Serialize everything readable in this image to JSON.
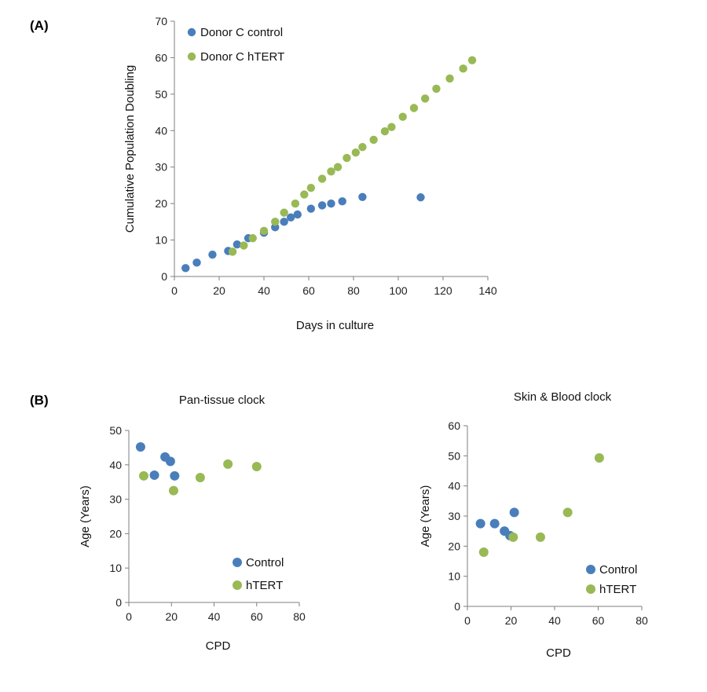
{
  "panels": {
    "a": "(A)",
    "b": "(B)"
  },
  "colors": {
    "control": "#4a7ebb",
    "htert": "#98b954",
    "axis": "#7f7f7f"
  },
  "chart_data": [
    {
      "id": "A",
      "type": "scatter",
      "title": "",
      "xlabel": "Days in culture",
      "ylabel": "Cumulative Population Doubling",
      "xlim": [
        0,
        140
      ],
      "ylim": [
        0,
        70
      ],
      "xticks": [
        0,
        20,
        40,
        60,
        80,
        100,
        120,
        140
      ],
      "yticks": [
        0,
        10,
        20,
        30,
        40,
        50,
        60,
        70
      ],
      "legend_position": "top-left",
      "series": [
        {
          "name": "Donor C control",
          "color": "control",
          "points": [
            [
              5,
              2.3
            ],
            [
              10,
              3.8
            ],
            [
              17,
              6
            ],
            [
              24,
              7
            ],
            [
              28,
              8.8
            ],
            [
              33,
              10.5
            ],
            [
              40,
              12
            ],
            [
              45,
              13.5
            ],
            [
              49,
              15
            ],
            [
              52,
              16.2
            ],
            [
              55,
              17
            ],
            [
              61,
              18.6
            ],
            [
              66,
              19.5
            ],
            [
              70,
              20
            ],
            [
              75,
              20.6
            ],
            [
              84,
              21.8
            ],
            [
              110,
              21.7
            ]
          ]
        },
        {
          "name": "Donor C hTERT",
          "color": "htert",
          "points": [
            [
              26,
              6.8
            ],
            [
              31,
              8.5
            ],
            [
              35,
              10.5
            ],
            [
              40,
              12.5
            ],
            [
              45,
              15
            ],
            [
              49,
              17.5
            ],
            [
              54,
              20
            ],
            [
              58,
              22.5
            ],
            [
              61,
              24.3
            ],
            [
              66,
              26.8
            ],
            [
              70,
              28.8
            ],
            [
              73,
              30
            ],
            [
              77,
              32.5
            ],
            [
              81,
              34
            ],
            [
              84,
              35.5
            ],
            [
              89,
              37.5
            ],
            [
              94,
              39.8
            ],
            [
              97,
              41
            ],
            [
              102,
              43.8
            ],
            [
              107,
              46.2
            ],
            [
              112,
              48.8
            ],
            [
              117,
              51.5
            ],
            [
              123,
              54.3
            ],
            [
              129,
              57
            ],
            [
              133,
              59.3
            ]
          ]
        }
      ]
    },
    {
      "id": "B1",
      "type": "scatter",
      "title": "Pan-tissue clock",
      "xlabel": "CPD",
      "ylabel": "Age (Years)",
      "xlim": [
        0,
        80
      ],
      "ylim": [
        0,
        50
      ],
      "xticks": [
        0,
        20,
        40,
        60,
        80
      ],
      "yticks": [
        0,
        10,
        20,
        30,
        40,
        50
      ],
      "legend_position": "bottom-right",
      "series": [
        {
          "name": "Control",
          "color": "control",
          "points": [
            [
              5.5,
              45.2
            ],
            [
              12,
              37
            ],
            [
              17,
              42.3
            ],
            [
              19.5,
              41
            ],
            [
              21.5,
              36.8
            ]
          ]
        },
        {
          "name": "hTERT",
          "color": "htert",
          "points": [
            [
              7,
              36.8
            ],
            [
              21,
              32.5
            ],
            [
              33.5,
              36.3
            ],
            [
              46.5,
              40.2
            ],
            [
              60,
              39.5
            ]
          ]
        }
      ]
    },
    {
      "id": "B2",
      "type": "scatter",
      "title": "Skin & Blood clock",
      "xlabel": "CPD",
      "ylabel": "Age (Years)",
      "xlim": [
        0,
        80
      ],
      "ylim": [
        0,
        60
      ],
      "xticks": [
        0,
        20,
        40,
        60,
        80
      ],
      "yticks": [
        0,
        10,
        20,
        30,
        40,
        50,
        60
      ],
      "legend_position": "bottom-right",
      "series": [
        {
          "name": "Control",
          "color": "control",
          "points": [
            [
              6,
              27.5
            ],
            [
              12.5,
              27.5
            ],
            [
              17,
              25
            ],
            [
              19.5,
              23.5
            ],
            [
              21.5,
              31.2
            ]
          ]
        },
        {
          "name": "hTERT",
          "color": "htert",
          "points": [
            [
              7.5,
              18
            ],
            [
              21,
              23
            ],
            [
              33.5,
              23
            ],
            [
              46,
              31.2
            ],
            [
              60.5,
              49.3
            ]
          ]
        }
      ]
    }
  ]
}
